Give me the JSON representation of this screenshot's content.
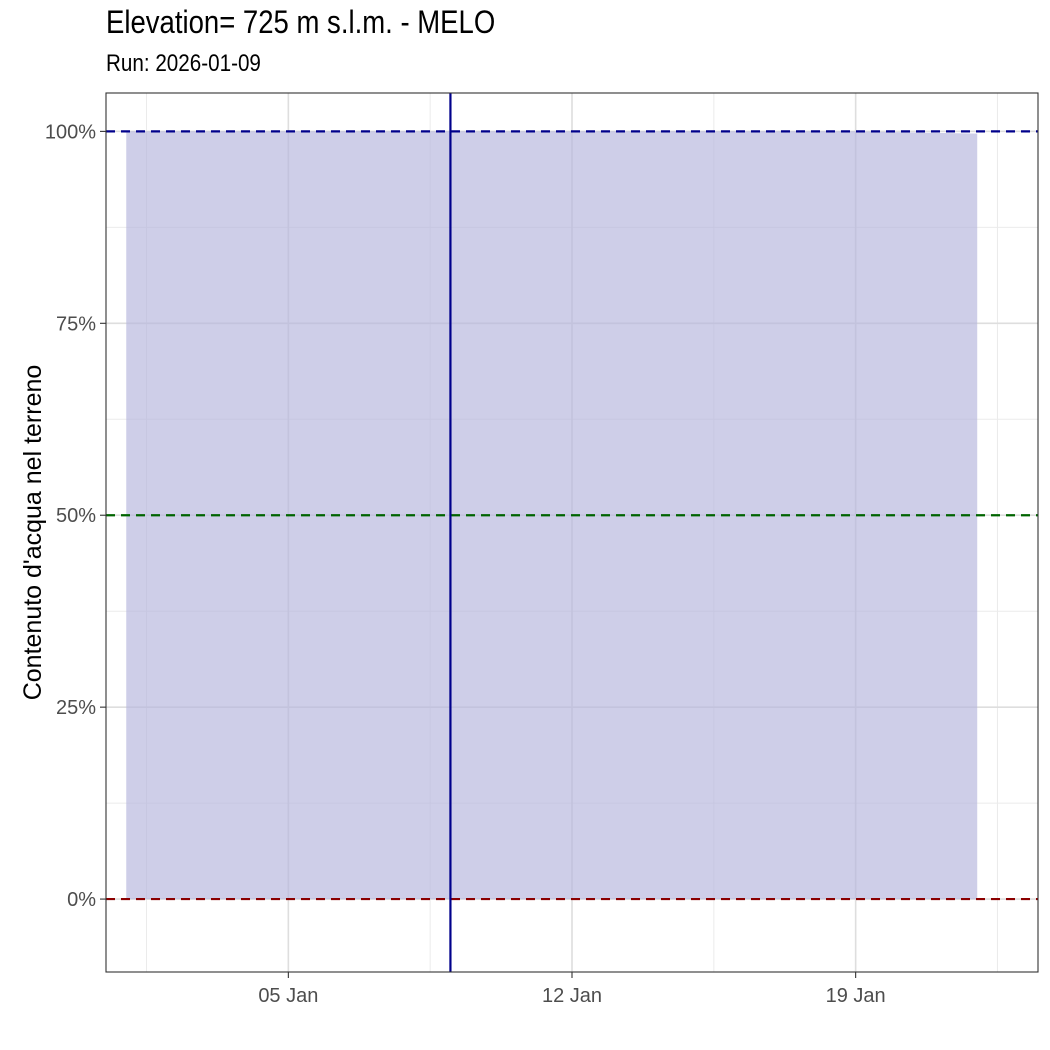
{
  "chart_data": {
    "type": "area",
    "title": "Elevation= 725 m s.l.m. - MELO",
    "subtitle": "Run: 2026-01-09",
    "ylabel": "Contenuto d'acqua nel terreno",
    "xlabel": "",
    "x_ticks": [
      {
        "date": "2026-01-05",
        "label": "05 Jan"
      },
      {
        "date": "2026-01-12",
        "label": "12 Jan"
      },
      {
        "date": "2026-01-19",
        "label": "19 Jan"
      }
    ],
    "y_ticks": [
      {
        "value": 0,
        "label": "0%"
      },
      {
        "value": 0.25,
        "label": "25%"
      },
      {
        "value": 0.5,
        "label": "50%"
      },
      {
        "value": 0.75,
        "label": "75%"
      },
      {
        "value": 1.0,
        "label": "100%"
      }
    ],
    "xlim": [
      "2025-12-31T12:00",
      "2026-01-23T12:00"
    ],
    "ylim": [
      -0.095,
      1.05
    ],
    "series": [
      {
        "x": [
          "2026-01-01",
          "2026-01-05",
          "2026-01-09",
          "2026-01-12",
          "2026-01-16",
          "2026-01-19",
          "2026-01-22"
        ],
        "values": [
          1.0,
          1.0,
          1.0,
          1.0,
          1.0,
          1.0,
          0.997
        ],
        "color": "#b3b3dc"
      }
    ],
    "reference_lines": [
      {
        "orientation": "horizontal",
        "value": 1.0,
        "color": "#00008b",
        "style": "dashed"
      },
      {
        "orientation": "horizontal",
        "value": 0.5,
        "color": "#006400",
        "style": "dashed"
      },
      {
        "orientation": "horizontal",
        "value": 0.0,
        "color": "#8b0000",
        "style": "dashed"
      },
      {
        "orientation": "vertical",
        "date": "2026-01-09",
        "color": "#00008b",
        "style": "solid"
      }
    ],
    "grid": true,
    "legend": "none"
  }
}
